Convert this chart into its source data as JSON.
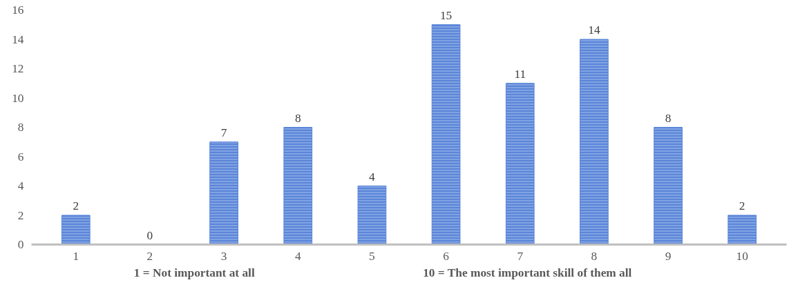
{
  "chart_data": {
    "type": "bar",
    "categories": [
      "1",
      "2",
      "3",
      "4",
      "5",
      "6",
      "7",
      "8",
      "9",
      "10"
    ],
    "values": [
      2,
      0,
      7,
      8,
      4,
      15,
      11,
      14,
      8,
      2
    ],
    "color": "#5a85d8",
    "ylim": [
      0,
      16
    ],
    "yticks": [
      0,
      2,
      4,
      6,
      8,
      10,
      12,
      14,
      16
    ],
    "grid": false,
    "data_labels": true,
    "annotations": [
      "1 = Not important at all",
      "10 = The most important skill of them all"
    ]
  }
}
